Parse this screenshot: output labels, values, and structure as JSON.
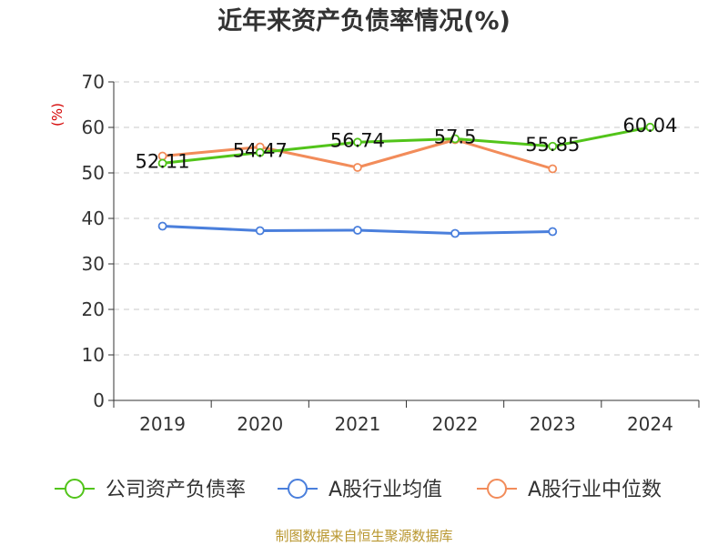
{
  "chart_data": {
    "type": "line",
    "title": "近年来资产负债率情况(%)",
    "ylabel": "(%)",
    "xlabel": "",
    "categories": [
      "2019",
      "2020",
      "2021",
      "2022",
      "2023",
      "2024"
    ],
    "ylim": [
      0,
      70
    ],
    "yticks": [
      0,
      10,
      20,
      30,
      40,
      50,
      60,
      70
    ],
    "grid": true,
    "legend_position": "bottom",
    "series": [
      {
        "name": "公司资产负债率",
        "color": "#52c41a",
        "values": [
          52.11,
          54.47,
          56.74,
          57.5,
          55.85,
          60.04
        ],
        "labels": [
          "52.11",
          "54.47",
          "56.74",
          "57.5",
          "55.85",
          "60.04"
        ]
      },
      {
        "name": "A股行业均值",
        "color": "#4a7fdc",
        "values": [
          38.3,
          37.3,
          37.4,
          36.7,
          37.1,
          null
        ]
      },
      {
        "name": "A股行业中位数",
        "color": "#f28c5a",
        "values": [
          53.7,
          55.7,
          51.2,
          57.3,
          50.9,
          null
        ]
      }
    ],
    "source": "制图数据来自恒生聚源数据库"
  }
}
